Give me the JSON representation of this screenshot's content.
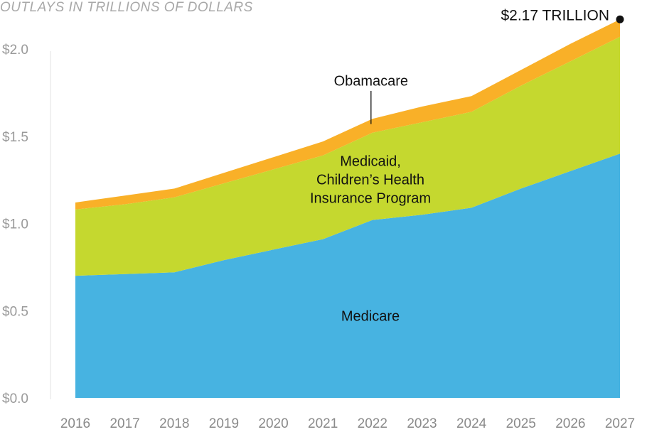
{
  "chart_data": {
    "type": "area",
    "stacked": true,
    "subtitle": "OUTLAYS IN TRILLIONS OF DOLLARS",
    "x": [
      "2016",
      "2017",
      "2018",
      "2019",
      "2020",
      "2021",
      "2022",
      "2023",
      "2024",
      "2025",
      "2026",
      "2027"
    ],
    "ylim": [
      0,
      2.0
    ],
    "yticks": [
      0.0,
      0.5,
      1.0,
      1.5,
      2.0
    ],
    "ytick_labels": [
      "$0.0",
      "$0.5",
      "$1.0",
      "$1.5",
      "$2.0"
    ],
    "grid": false,
    "series": [
      {
        "name": "Medicare",
        "color": "#47b3e1",
        "values": [
          0.7,
          0.71,
          0.72,
          0.79,
          0.85,
          0.91,
          1.02,
          1.05,
          1.09,
          1.2,
          1.3,
          1.4
        ]
      },
      {
        "name": "Medicaid, Children’s Health Insurance Program",
        "label_lines": [
          "Medicaid,",
          "Children’s Health",
          "Insurance Program"
        ],
        "color": "#c5d82f",
        "values": [
          0.38,
          0.4,
          0.43,
          0.44,
          0.46,
          0.48,
          0.5,
          0.53,
          0.55,
          0.59,
          0.63,
          0.67
        ]
      },
      {
        "name": "Obamacare",
        "color": "#f9b028",
        "values": [
          0.04,
          0.05,
          0.05,
          0.06,
          0.07,
          0.08,
          0.08,
          0.09,
          0.09,
          0.09,
          0.1,
          0.1
        ]
      }
    ],
    "annotation": {
      "text": "$2.17 TRILLION",
      "x": "2027",
      "y": 2.17
    }
  }
}
